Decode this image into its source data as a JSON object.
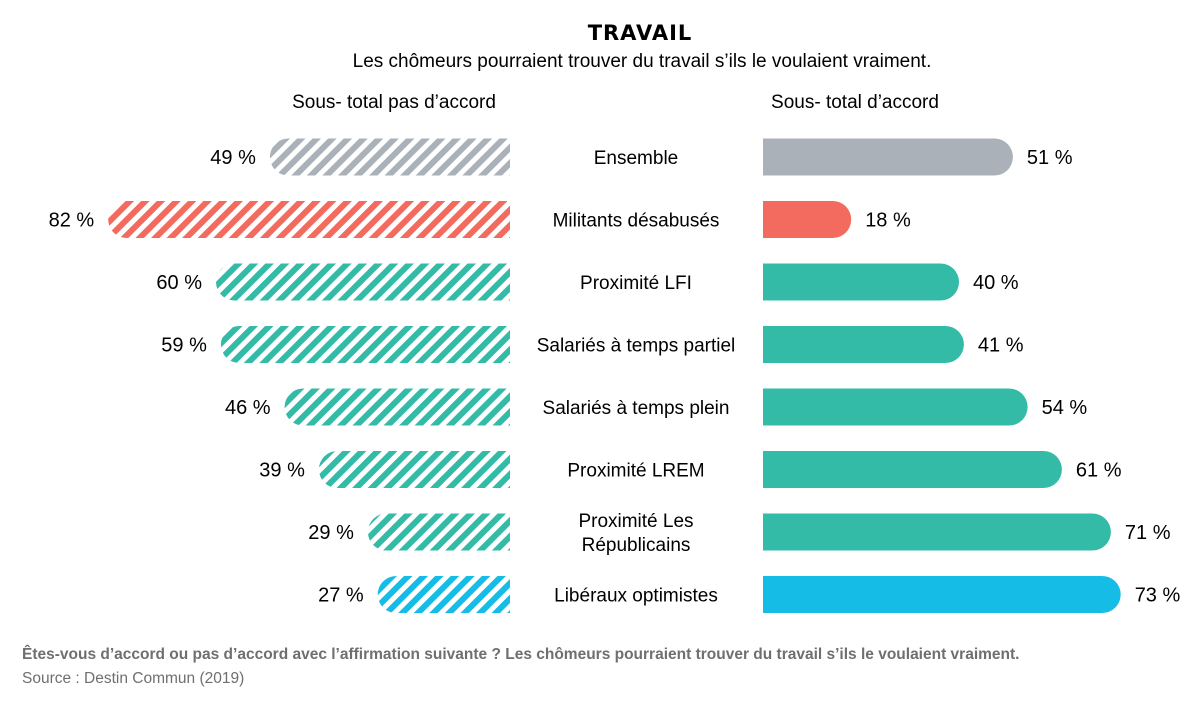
{
  "chart_data": {
    "type": "bar",
    "title": "TRAVAIL",
    "subtitle": "Les chômeurs pourraient trouver du travail s’ils le voulaient vraiment.",
    "left_header": "Sous- total pas d’accord",
    "right_header": "Sous- total d’accord",
    "categories": [
      [
        "Ensemble"
      ],
      [
        "Militants désabusés"
      ],
      [
        "Proximité LFI"
      ],
      [
        "Salariés à temps partiel"
      ],
      [
        "Salariés à temps plein"
      ],
      [
        "Proximité LREM"
      ],
      [
        "Proximité Les",
        "Républicains"
      ],
      [
        "Libéraux optimistes"
      ]
    ],
    "series": [
      {
        "name": "Sous- total pas d’accord",
        "values": [
          49,
          82,
          60,
          59,
          46,
          39,
          29,
          27
        ],
        "labels": [
          "49 %",
          "82 %",
          "60 %",
          "59 %",
          "46 %",
          "39 %",
          "29 %",
          "27 %"
        ]
      },
      {
        "name": "Sous- total d’accord",
        "values": [
          51,
          18,
          40,
          41,
          54,
          61,
          71,
          73
        ],
        "labels": [
          "51 %",
          "18 %",
          "40 %",
          "41 %",
          "54 %",
          "61 %",
          "71 %",
          "73 %"
        ]
      }
    ],
    "colors": [
      "#aab1b8",
      "#f26b5e",
      "#33bba8",
      "#33bba8",
      "#33bba8",
      "#33bba8",
      "#33bba8",
      "#15bde6"
    ]
  },
  "footer": {
    "question": "Êtes-vous d’accord ou pas d’accord avec l’affirmation suivante ? Les chômeurs pourraient trouver du travail s’ils le voulaient vraiment.",
    "source": "Source : Destin Commun (2019)"
  }
}
